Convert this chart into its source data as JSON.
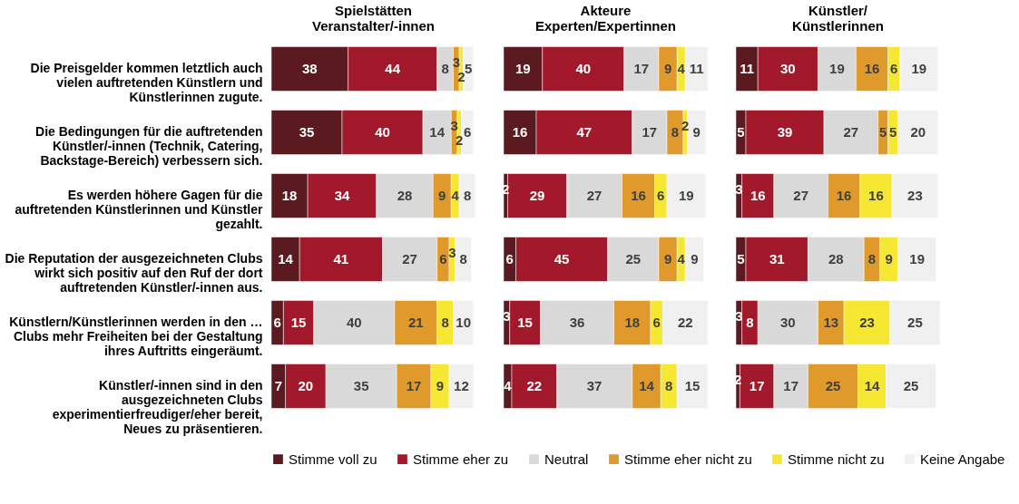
{
  "chart_data": [
    {
      "type": "bar",
      "orientation": "horizontal",
      "stacked": true,
      "data_labels": true,
      "legend": "bottom",
      "tick_labels": "y",
      "title": "Spielstätten Veranstalter/-innen",
      "categories": [
        "Die Preisgelder kommen letztlich auch vielen auftretenden Künstlern und Künstlerinnen zugute.",
        "Die Bedingungen für die auftretenden Künstler/-innen (Technik, Catering, Backstage-Bereich) verbessern sich.",
        "Es werden höhere Gagen für die auftretenden Künstlerinnen und Künstler gezahlt.",
        "Die Reputation der ausgezeichneten Clubs wirkt sich positiv auf den Ruf der dort auftretenden Künstler/-innen aus.",
        "Künstlern/Künstlerinnen werden in den … Clubs mehr Freiheiten bei der Gestaltung ihres Auftritts eingeräumt.",
        "Künstler/-innen sind in den ausgezeichneten Clubs experimentierfreudiger/eher bereit, Neues zu präsentieren."
      ],
      "series": [
        {
          "name": "Stimme voll zu",
          "color": "#5a1a1f",
          "values": [
            38,
            35,
            18,
            14,
            6,
            7
          ]
        },
        {
          "name": "Stimme eher zu",
          "color": "#a2192b",
          "values": [
            44,
            40,
            34,
            41,
            15,
            20
          ]
        },
        {
          "name": "Neutral",
          "color": "#d9d9d9",
          "values": [
            8,
            14,
            28,
            27,
            40,
            35
          ]
        },
        {
          "name": "Stimme eher nicht zu",
          "color": "#e09a2c",
          "values": [
            3,
            3,
            9,
            6,
            21,
            17
          ]
        },
        {
          "name": "Stimme nicht zu",
          "color": "#f6e733",
          "values": [
            2,
            2,
            4,
            3,
            8,
            9
          ]
        },
        {
          "name": "Keine Angabe",
          "color": "#f0f0f0",
          "values": [
            5,
            6,
            8,
            8,
            10,
            12
          ]
        }
      ]
    },
    {
      "type": "bar",
      "orientation": "horizontal",
      "stacked": true,
      "data_labels": true,
      "legend": "bottom",
      "tick_labels": false,
      "title": "Akteure Experten/Expertinnen",
      "categories": [
        null,
        null,
        null,
        null,
        null,
        null
      ],
      "series": [
        {
          "name": "Stimme voll zu",
          "color": "#5a1a1f",
          "values": [
            19,
            16,
            2,
            6,
            3,
            4
          ]
        },
        {
          "name": "Stimme eher zu",
          "color": "#a2192b",
          "values": [
            40,
            47,
            29,
            45,
            15,
            22
          ]
        },
        {
          "name": "Neutral",
          "color": "#d9d9d9",
          "values": [
            17,
            17,
            27,
            25,
            36,
            37
          ]
        },
        {
          "name": "Stimme eher nicht zu",
          "color": "#e09a2c",
          "values": [
            9,
            8,
            16,
            9,
            18,
            14
          ]
        },
        {
          "name": "Stimme nicht zu",
          "color": "#f6e733",
          "values": [
            4,
            2,
            6,
            4,
            6,
            8
          ]
        },
        {
          "name": "Keine Angabe",
          "color": "#f0f0f0",
          "values": [
            11,
            9,
            19,
            9,
            22,
            15
          ]
        }
      ]
    },
    {
      "type": "bar",
      "orientation": "horizontal",
      "stacked": true,
      "data_labels": true,
      "legend": "bottom",
      "tick_labels": false,
      "title": "Künstler/ Künstlerinnen",
      "categories": [
        null,
        null,
        null,
        null,
        null,
        null
      ],
      "series": [
        {
          "name": "Stimme voll zu",
          "color": "#5a1a1f",
          "values": [
            11,
            5,
            3,
            5,
            3,
            2
          ]
        },
        {
          "name": "Stimme eher zu",
          "color": "#a2192b",
          "values": [
            30,
            39,
            16,
            31,
            8,
            17
          ]
        },
        {
          "name": "Neutral",
          "color": "#d9d9d9",
          "values": [
            19,
            27,
            27,
            28,
            30,
            17
          ]
        },
        {
          "name": "Stimme eher nicht zu",
          "color": "#e09a2c",
          "values": [
            16,
            5,
            16,
            8,
            13,
            25
          ]
        },
        {
          "name": "Stimme nicht zu",
          "color": "#f6e733",
          "values": [
            6,
            5,
            16,
            9,
            23,
            14
          ]
        },
        {
          "name": "Keine Angabe",
          "color": "#f0f0f0",
          "values": [
            19,
            20,
            23,
            19,
            25,
            25
          ]
        }
      ]
    }
  ]
}
